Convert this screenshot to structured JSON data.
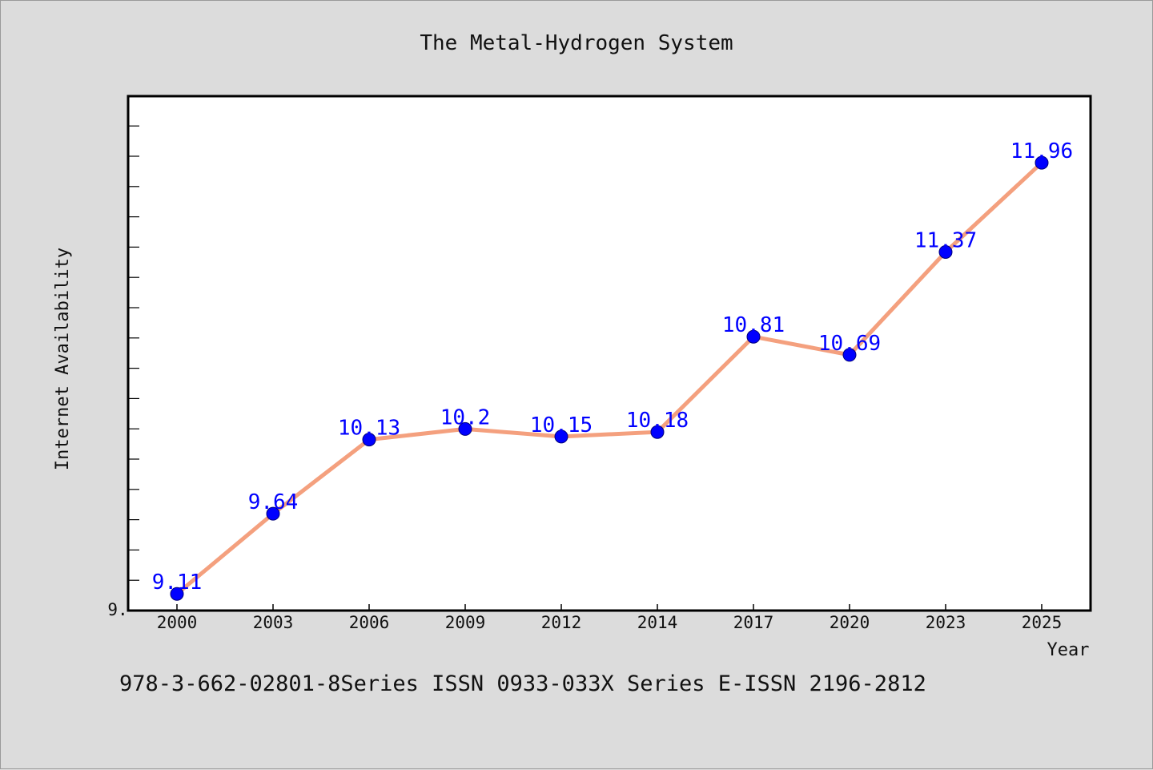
{
  "chart_data": {
    "type": "line",
    "title": "The Metal-Hydrogen System",
    "xlabel": "Year",
    "ylabel": "Internet Availability",
    "categories": [
      "2000",
      "2003",
      "2006",
      "2009",
      "2012",
      "2014",
      "2017",
      "2020",
      "2023",
      "2025"
    ],
    "series": [
      {
        "values": [
          9.11,
          9.64,
          10.13,
          10.2,
          10.15,
          10.18,
          10.81,
          10.69,
          11.37,
          11.96
        ],
        "labels": [
          "9.11",
          "9.64",
          "10.13",
          "10.2",
          "10.15",
          "10.18",
          "10.81",
          "10.69",
          "11.37",
          "11.96"
        ],
        "line_color": "#f4a07e",
        "marker_color": "#0000ff"
      }
    ],
    "y_tick_labels": [
      "9."
    ],
    "ylim": [
      9.0,
      12.4
    ],
    "grid": false,
    "legend": "none"
  },
  "footer": {
    "text": "978-3-662-02801-8Series ISSN 0933-033X Series E-ISSN 2196-2812"
  }
}
